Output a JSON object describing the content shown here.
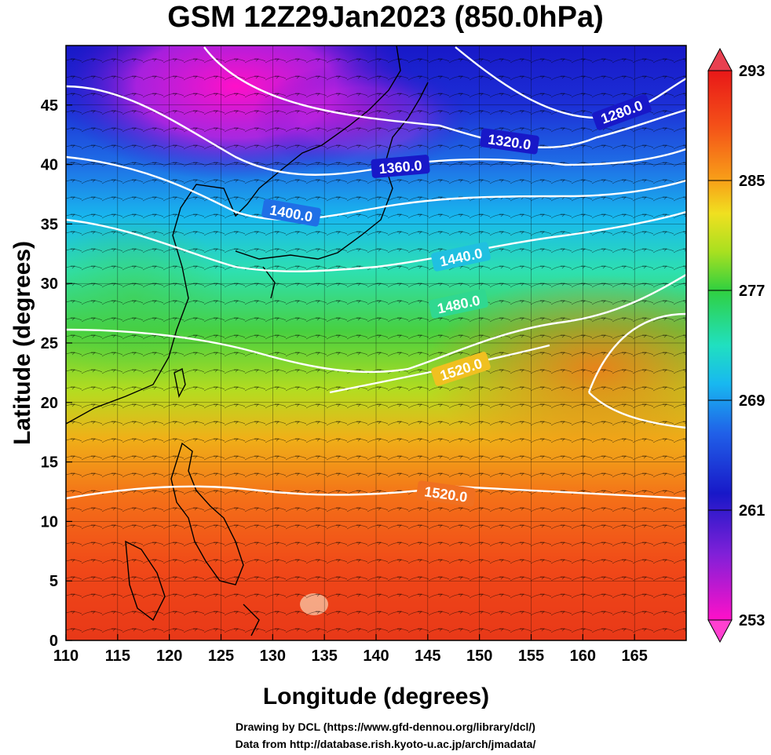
{
  "title": "GSM 12Z29Jan2023 (850.0hPa)",
  "x_axis": {
    "label": "Longitude (degrees)",
    "range": [
      110,
      170
    ],
    "ticks": [
      "110",
      "115",
      "120",
      "125",
      "130",
      "135",
      "140",
      "145",
      "150",
      "155",
      "160",
      "165"
    ]
  },
  "y_axis": {
    "label": "Latitude  (degrees)",
    "range": [
      0,
      50
    ],
    "ticks": [
      "0",
      "5",
      "10",
      "15",
      "20",
      "25",
      "30",
      "35",
      "40",
      "45"
    ]
  },
  "colorbar": {
    "min": 253,
    "max": 293,
    "labels": [
      "293",
      "285",
      "277",
      "269",
      "261",
      "253"
    ]
  },
  "contours": [
    {
      "label": "1280.0"
    },
    {
      "label": "1320.0"
    },
    {
      "label": "1360.0"
    },
    {
      "label": "1400.0"
    },
    {
      "label": "1440.0"
    },
    {
      "label": "1480.0"
    },
    {
      "label": "1520.0"
    },
    {
      "label": "1520.0"
    }
  ],
  "footer": {
    "line1": "Drawing by DCL (https://www.gfd-dennou.org/library/dcl/)",
    "line2": "Data from http://database.rish.kyoto-u.ac.jp/arch/jmadata/"
  }
}
